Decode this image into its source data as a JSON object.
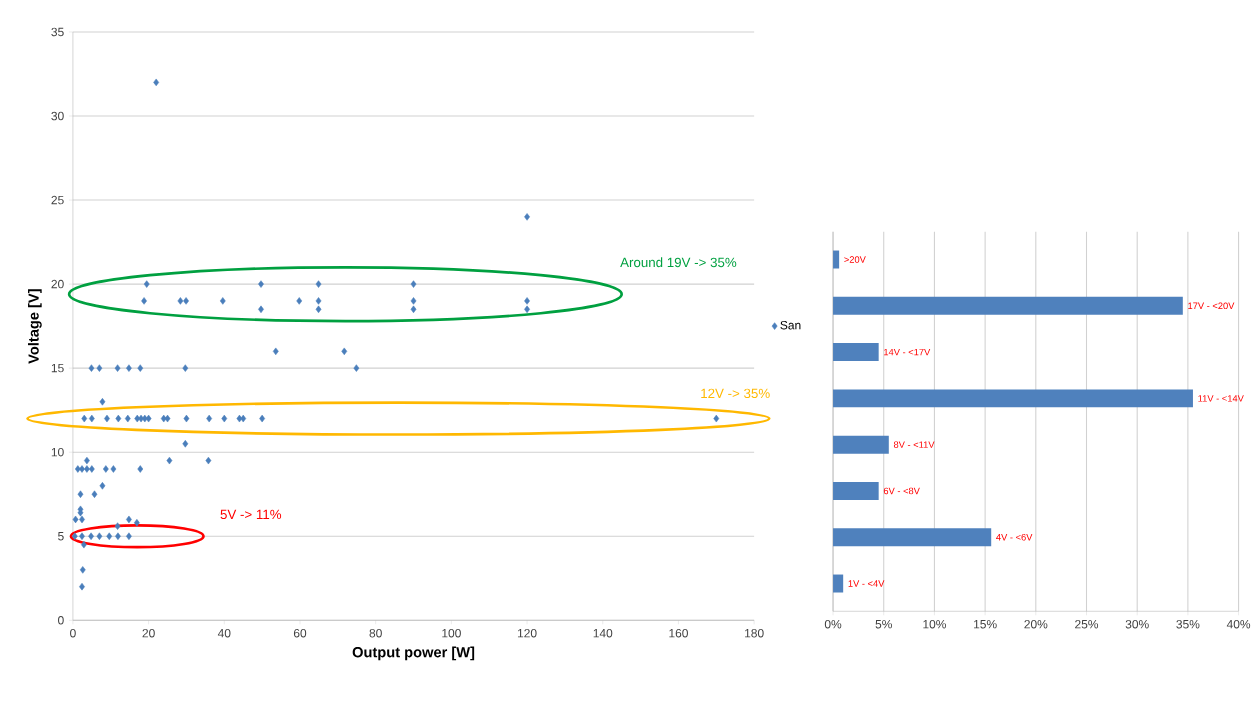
{
  "chart_data": [
    {
      "type": "scatter",
      "xlabel": "Output power [W]",
      "ylabel": "Voltage  [V]",
      "xlim": [
        0,
        180
      ],
      "xticks": [
        0,
        20,
        40,
        60,
        80,
        100,
        120,
        140,
        160,
        180
      ],
      "ylim": [
        0,
        35
      ],
      "yticks": [
        0,
        5,
        10,
        15,
        20,
        25,
        30,
        35
      ],
      "grid": "y",
      "marker": "diamond",
      "legend": "right",
      "series": [
        {
          "name": "San",
          "color": "#4a7ebb",
          "x": [
            22,
            120,
            19.5,
            18.8,
            28.4,
            29.9,
            39.6,
            49.7,
            49.7,
            59.8,
            64.9,
            64.9,
            64.9,
            90,
            90,
            90,
            120,
            120,
            53.6,
            71.7,
            74.9,
            4.9,
            7,
            11.8,
            14.8,
            17.8,
            29.7,
            7.8,
            3,
            5,
            9,
            12,
            14.5,
            17,
            18,
            19,
            20,
            24,
            25,
            30,
            36,
            40,
            44,
            45,
            50,
            170,
            29.7,
            25.5,
            35.8,
            3.7,
            1.3,
            2.4,
            3.7,
            5,
            8.7,
            10.7,
            17.8,
            7.8,
            5.7,
            2,
            2,
            2,
            0.7,
            2.4,
            14.8,
            16.9,
            11.8,
            0.5,
            2.4,
            4.8,
            7,
            9.6,
            11.9,
            14.8,
            2.9,
            2.6,
            2.4
          ],
          "values": [
            32,
            24,
            20,
            19,
            19,
            19,
            19,
            20,
            18.5,
            19,
            20,
            19,
            18.5,
            20,
            19,
            18.5,
            19,
            18.5,
            16,
            16,
            15,
            15,
            15,
            15,
            15,
            15,
            15,
            13,
            12,
            12,
            12,
            12,
            12,
            12,
            12,
            12,
            12,
            12,
            12,
            12,
            12,
            12,
            12,
            12,
            12,
            12,
            10.5,
            9.5,
            9.5,
            9.5,
            9,
            9,
            9,
            9,
            9,
            9,
            9,
            8,
            7.5,
            7.5,
            6.6,
            6.4,
            6,
            6,
            6,
            5.8,
            5.6,
            5,
            5,
            5,
            5,
            5,
            5,
            5,
            4.5,
            3,
            2
          ]
        }
      ],
      "annotations": [
        "Around 19V -> 35%",
        "12V -> 35%",
        "5V -> 11%"
      ]
    },
    {
      "type": "bar",
      "orientation": "horizontal",
      "categories": [
        ">20V",
        "17V - <20V",
        "14V - <17V",
        "11V - <14V",
        "8V - <11V",
        "6V - <8V",
        "4V - <6V",
        "1V - <4V"
      ],
      "values": [
        0.6,
        34.5,
        4.5,
        35.5,
        5.5,
        4.5,
        15.6,
        1.0
      ],
      "color": "#4f81bd",
      "xlim": [
        0,
        40
      ],
      "xticks": [
        {
          "value": 0,
          "label": "0%"
        },
        {
          "value": 5,
          "label": "5%"
        },
        {
          "value": 10,
          "label": "10%"
        },
        {
          "value": 15,
          "label": "15%"
        },
        {
          "value": 20,
          "label": "20%"
        },
        {
          "value": 25,
          "label": "25%"
        },
        {
          "value": 30,
          "label": "30%"
        },
        {
          "value": 35,
          "label": "35%"
        },
        {
          "value": 40,
          "label": "40%"
        }
      ],
      "grid": "x",
      "tick_labels": "x"
    }
  ]
}
